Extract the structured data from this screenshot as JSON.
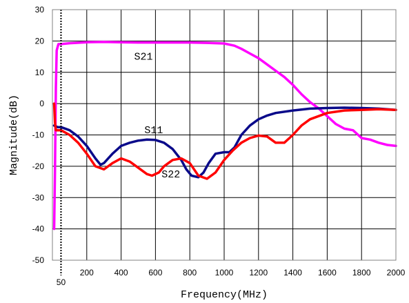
{
  "chart_data": {
    "type": "line",
    "title": "",
    "xlabel": "Frequency(MHz)",
    "ylabel": "Magnitude(dB)",
    "xlim": [
      0,
      2000
    ],
    "ylim": [
      -50,
      30
    ],
    "x_ticks": [
      200,
      400,
      600,
      800,
      1000,
      1200,
      1400,
      1600,
      1800,
      2000
    ],
    "y_ticks": [
      -50,
      -40,
      -30,
      -20,
      -10,
      0,
      10,
      20,
      30
    ],
    "marker_line": {
      "x": 50,
      "label": "50"
    },
    "grid": true,
    "legend": "none",
    "series": [
      {
        "name": "S21",
        "color": "#ff00ff",
        "points": [
          [
            10,
            -40
          ],
          [
            15,
            -22
          ],
          [
            20,
            5
          ],
          [
            25,
            17
          ],
          [
            35,
            19
          ],
          [
            50,
            19
          ],
          [
            100,
            19.3
          ],
          [
            200,
            19.6
          ],
          [
            300,
            19.7
          ],
          [
            400,
            19.6
          ],
          [
            500,
            19.5
          ],
          [
            600,
            19.5
          ],
          [
            700,
            19.5
          ],
          [
            800,
            19.5
          ],
          [
            900,
            19.4
          ],
          [
            1000,
            19.2
          ],
          [
            1060,
            18.5
          ],
          [
            1100,
            17.5
          ],
          [
            1150,
            16
          ],
          [
            1200,
            14.5
          ],
          [
            1250,
            12.5
          ],
          [
            1300,
            10.5
          ],
          [
            1350,
            8.5
          ],
          [
            1400,
            6
          ],
          [
            1450,
            3
          ],
          [
            1500,
            0.5
          ],
          [
            1550,
            -1.5
          ],
          [
            1600,
            -4
          ],
          [
            1650,
            -6.5
          ],
          [
            1700,
            -8
          ],
          [
            1750,
            -8.5
          ],
          [
            1800,
            -11
          ],
          [
            1850,
            -11.5
          ],
          [
            1900,
            -12.5
          ],
          [
            1950,
            -13.2
          ],
          [
            2000,
            -13.5
          ]
        ]
      },
      {
        "name": "S11",
        "color": "#0a0a8a",
        "points": [
          [
            10,
            -7
          ],
          [
            30,
            -7.5
          ],
          [
            50,
            -7.5
          ],
          [
            100,
            -8.5
          ],
          [
            150,
            -10.5
          ],
          [
            200,
            -13.5
          ],
          [
            250,
            -17.5
          ],
          [
            280,
            -19.5
          ],
          [
            300,
            -19
          ],
          [
            350,
            -16
          ],
          [
            400,
            -13.5
          ],
          [
            450,
            -12.5
          ],
          [
            500,
            -11.8
          ],
          [
            550,
            -11.5
          ],
          [
            600,
            -11.6
          ],
          [
            650,
            -12.5
          ],
          [
            700,
            -14.5
          ],
          [
            750,
            -18
          ],
          [
            780,
            -21
          ],
          [
            810,
            -23
          ],
          [
            850,
            -23.5
          ],
          [
            880,
            -22
          ],
          [
            910,
            -19
          ],
          [
            950,
            -16
          ],
          [
            1000,
            -15.5
          ],
          [
            1030,
            -15.5
          ],
          [
            1060,
            -14
          ],
          [
            1100,
            -10
          ],
          [
            1150,
            -7
          ],
          [
            1200,
            -5
          ],
          [
            1250,
            -3.8
          ],
          [
            1300,
            -3
          ],
          [
            1400,
            -2.2
          ],
          [
            1500,
            -1.6
          ],
          [
            1600,
            -1.4
          ],
          [
            1700,
            -1.3
          ],
          [
            1800,
            -1.4
          ],
          [
            1900,
            -1.6
          ],
          [
            2000,
            -2
          ]
        ]
      },
      {
        "name": "S22",
        "color": "#ff0000",
        "points": [
          [
            10,
            0
          ],
          [
            15,
            -6
          ],
          [
            20,
            -8.5
          ],
          [
            30,
            -8.5
          ],
          [
            50,
            -8.5
          ],
          [
            100,
            -10
          ],
          [
            150,
            -12.5
          ],
          [
            200,
            -16
          ],
          [
            250,
            -20
          ],
          [
            300,
            -21
          ],
          [
            350,
            -19
          ],
          [
            400,
            -17.5
          ],
          [
            450,
            -18.5
          ],
          [
            500,
            -20.5
          ],
          [
            550,
            -22.5
          ],
          [
            580,
            -23
          ],
          [
            620,
            -22
          ],
          [
            650,
            -20
          ],
          [
            700,
            -18
          ],
          [
            750,
            -17.5
          ],
          [
            800,
            -19
          ],
          [
            850,
            -23
          ],
          [
            900,
            -24
          ],
          [
            950,
            -22
          ],
          [
            1000,
            -18
          ],
          [
            1050,
            -15
          ],
          [
            1100,
            -12.5
          ],
          [
            1150,
            -11
          ],
          [
            1200,
            -10.2
          ],
          [
            1250,
            -10.5
          ],
          [
            1300,
            -12.5
          ],
          [
            1350,
            -12.5
          ],
          [
            1400,
            -10
          ],
          [
            1450,
            -7
          ],
          [
            1500,
            -5
          ],
          [
            1600,
            -3
          ],
          [
            1700,
            -2.2
          ],
          [
            1800,
            -2
          ],
          [
            1900,
            -1.8
          ],
          [
            2000,
            -2
          ]
        ]
      }
    ],
    "annotations": [
      {
        "text": "S21",
        "x": 530,
        "y": 14
      },
      {
        "text": "S11",
        "x": 590,
        "y": -9.5
      },
      {
        "text": "S22",
        "x": 690,
        "y": -23.5
      }
    ]
  }
}
